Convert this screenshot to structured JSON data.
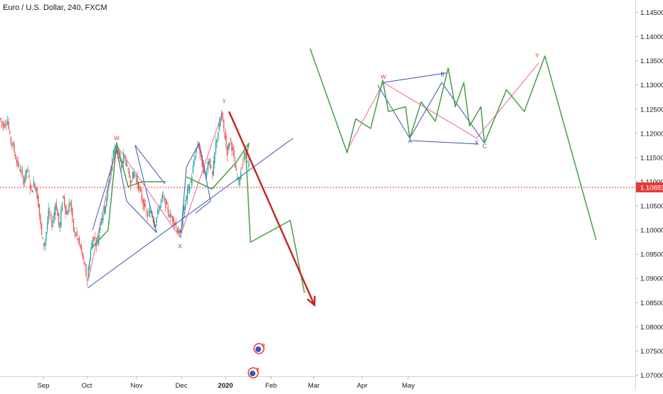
{
  "chart_data": {
    "type": "candlestick",
    "title": "Euro / U.S. Dollar, 240, FXCM",
    "ylim": [
      1.0685,
      1.1505
    ],
    "y_ticks": [
      1.07,
      1.075,
      1.08,
      1.085,
      1.09,
      1.095,
      1.1,
      1.105,
      1.11,
      1.115,
      1.12,
      1.125,
      1.13,
      1.135,
      1.14,
      1.145
    ],
    "y_tick_labels": [
      "1.07000",
      "1.07500",
      "1.08000",
      "1.08500",
      "1.09000",
      "1.09500",
      "1.10000",
      "1.10500",
      "1.11000",
      "1.11500",
      "1.12000",
      "1.12500",
      "1.13000",
      "1.13500",
      "1.14000",
      "1.14500"
    ],
    "x_ticks": [
      {
        "label": "Sep",
        "t": 61,
        "bold": false
      },
      {
        "label": "Oct",
        "t": 122,
        "bold": false
      },
      {
        "label": "Nov",
        "t": 192,
        "bold": false
      },
      {
        "label": "Dec",
        "t": 255,
        "bold": false
      },
      {
        "label": "2020",
        "t": 317,
        "bold": true
      },
      {
        "label": "Feb",
        "t": 381,
        "bold": false
      },
      {
        "label": "Mar",
        "t": 441,
        "bold": false
      },
      {
        "label": "Apr",
        "t": 509,
        "bold": false
      },
      {
        "label": "May",
        "t": 574,
        "bold": false
      }
    ],
    "current_price": {
      "value": 1.10883,
      "label": "1.10883",
      "color": "#e53935"
    },
    "colors": {
      "up": "#26a69a",
      "down": "#ef5350",
      "pink": "#f06292",
      "blue": "#3f51b5",
      "green": "#43a047",
      "red_arrow": "#c62828"
    },
    "price_path": [
      [
        0,
        1.1235
      ],
      [
        6,
        1.1215
      ],
      [
        12,
        1.1228
      ],
      [
        16,
        1.1185
      ],
      [
        20,
        1.1175
      ],
      [
        25,
        1.114
      ],
      [
        30,
        1.1125
      ],
      [
        35,
        1.11
      ],
      [
        40,
        1.113
      ],
      [
        45,
        1.108
      ],
      [
        50,
        1.11
      ],
      [
        55,
        1.106
      ],
      [
        60,
        1.099
      ],
      [
        64,
        1.0965
      ],
      [
        70,
        1.104
      ],
      [
        75,
        1.101
      ],
      [
        80,
        1.106
      ],
      [
        85,
        1.1
      ],
      [
        90,
        1.1075
      ],
      [
        95,
        1.103
      ],
      [
        100,
        1.106
      ],
      [
        105,
        1.1
      ],
      [
        110,
        1.0985
      ],
      [
        115,
        1.096
      ],
      [
        120,
        1.093
      ],
      [
        124,
        1.0895
      ],
      [
        128,
        1.095
      ],
      [
        133,
        1.099
      ],
      [
        138,
        1.097
      ],
      [
        143,
        1.102
      ],
      [
        148,
        1.104
      ],
      [
        152,
        1.1075
      ],
      [
        156,
        1.111
      ],
      [
        160,
        1.1155
      ],
      [
        164,
        1.118
      ],
      [
        168,
        1.115
      ],
      [
        172,
        1.113
      ],
      [
        176,
        1.116
      ],
      [
        180,
        1.113
      ],
      [
        185,
        1.11
      ],
      [
        190,
        1.112
      ],
      [
        196,
        1.109
      ],
      [
        202,
        1.106
      ],
      [
        208,
        1.103
      ],
      [
        214,
        1.104
      ],
      [
        219,
        1.101
      ],
      [
        224,
        1.104
      ],
      [
        230,
        1.107
      ],
      [
        235,
        1.105
      ],
      [
        240,
        1.103
      ],
      [
        246,
        1.102
      ],
      [
        251,
        1.1
      ],
      [
        255,
        1.099
      ],
      [
        260,
        1.104
      ],
      [
        265,
        1.108
      ],
      [
        270,
        1.11
      ],
      [
        275,
        1.115
      ],
      [
        280,
        1.118
      ],
      [
        285,
        1.114
      ],
      [
        290,
        1.111
      ],
      [
        295,
        1.115
      ],
      [
        300,
        1.111
      ],
      [
        305,
        1.118
      ],
      [
        309,
        1.121
      ],
      [
        313,
        1.124
      ],
      [
        317,
        1.12
      ],
      [
        321,
        1.116
      ],
      [
        325,
        1.119
      ],
      [
        329,
        1.116
      ],
      [
        333,
        1.112
      ],
      [
        337,
        1.11
      ],
      [
        341,
        1.113
      ],
      [
        346,
        1.116
      ],
      [
        350,
        1.1135
      ]
    ],
    "harmonic_left": {
      "labels": [
        {
          "text": "W",
          "t": 164,
          "v": 1.1186
        },
        {
          "text": "X",
          "t": 253,
          "v": 1.0963
        },
        {
          "text": "Y",
          "t": 315,
          "v": 1.1262
        }
      ],
      "pink_line": [
        [
          124,
          1.0895
        ],
        [
          164,
          1.1175
        ],
        [
          253,
          1.0985
        ],
        [
          313,
          1.1245
        ]
      ],
      "blue_1": [
        [
          130,
          1.1
        ],
        [
          164,
          1.1165
        ],
        [
          178,
          1.106
        ],
        [
          220,
          1.0995
        ],
        [
          190,
          1.1175
        ],
        [
          232,
          1.1095
        ]
      ],
      "blue_2": [
        [
          254,
          1.0985
        ],
        [
          262,
          1.113
        ],
        [
          280,
          1.118
        ],
        [
          296,
          1.106
        ],
        [
          275,
          1.1035
        ]
      ],
      "green_1": [
        [
          130,
          1.0965
        ],
        [
          152,
          1.1
        ],
        [
          164,
          1.118
        ],
        [
          180,
          1.109
        ],
        [
          200,
          1.11
        ],
        [
          233,
          1.11
        ]
      ],
      "green_2": [
        [
          262,
          1.111
        ],
        [
          298,
          1.1085
        ],
        [
          332,
          1.114
        ],
        [
          350,
          1.118
        ]
      ],
      "trendline": [
        [
          123,
          1.088
        ],
        [
          412,
          1.119
        ]
      ],
      "red_arrow": [
        [
          322,
          1.1245
        ],
        [
          442,
          1.0845
        ]
      ],
      "projection": [
        [
          350,
          1.118
        ],
        [
          346,
          1.115
        ],
        [
          352,
          1.0975
        ],
        [
          408,
          1.102
        ],
        [
          428,
          1.087
        ]
      ]
    },
    "harmonic_right": {
      "labels": [
        {
          "text": "W",
          "t": 539,
          "v": 1.1313
        },
        {
          "text": "B",
          "t": 622,
          "v": 1.1318
        },
        {
          "text": "Y",
          "t": 755,
          "v": 1.1357
        },
        {
          "text": "A",
          "t": 576,
          "v": 1.118
        },
        {
          "text": "X",
          "t": 670,
          "v": 1.1176
        },
        {
          "text": "C",
          "t": 681,
          "v": 1.117
        }
      ],
      "pink_line": [
        [
          488,
          1.1165
        ],
        [
          539,
          1.1305
        ],
        [
          670,
          1.119
        ],
        [
          757,
          1.1345
        ]
      ],
      "blue_line": [
        [
          531,
          1.13
        ],
        [
          576,
          1.119
        ],
        [
          621,
          1.1305
        ],
        [
          681,
          1.118
        ]
      ],
      "blue_top": [
        [
          539,
          1.1305
        ],
        [
          628,
          1.1325
        ]
      ],
      "blue_bottom": [
        [
          576,
          1.1185
        ],
        [
          673,
          1.1178
        ]
      ],
      "green_line": [
        [
          436,
          1.1375
        ],
        [
          488,
          1.116
        ],
        [
          500,
          1.123
        ],
        [
          521,
          1.121
        ],
        [
          538,
          1.131
        ],
        [
          546,
          1.1245
        ],
        [
          570,
          1.1255
        ],
        [
          576,
          1.119
        ],
        [
          592,
          1.1265
        ],
        [
          612,
          1.1225
        ],
        [
          630,
          1.1335
        ],
        [
          640,
          1.1255
        ],
        [
          652,
          1.1305
        ],
        [
          660,
          1.1215
        ],
        [
          676,
          1.1255
        ],
        [
          681,
          1.118
        ],
        [
          712,
          1.129
        ],
        [
          737,
          1.1245
        ],
        [
          766,
          1.136
        ],
        [
          838,
          1.098
        ]
      ]
    }
  },
  "watermark_badges": [
    {
      "text": "2",
      "t": 364,
      "v": 1.0755
    },
    {
      "text": "2",
      "t": 356,
      "v": 1.0705
    }
  ]
}
